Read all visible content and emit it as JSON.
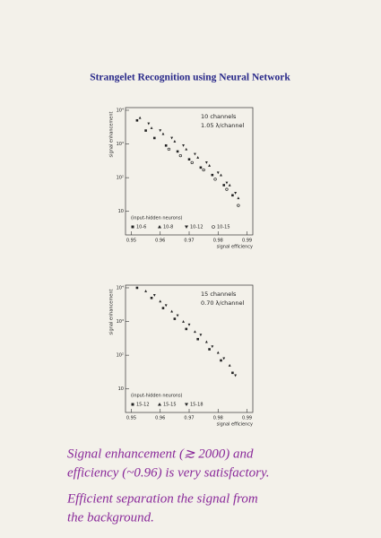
{
  "title": "Strangelet Recognition using Neural Network",
  "chart_data": [
    {
      "type": "scatter",
      "log_y": true,
      "xlabel": "signal efficiency",
      "ylabel": "signal enhancement",
      "annotations": [
        "10 channels",
        "1.05 λ/channel"
      ],
      "legend_title": "(input-hidden neurons)",
      "xlim": [
        0.948,
        0.992
      ],
      "xticks": [
        0.95,
        0.96,
        0.97,
        0.98,
        0.99
      ],
      "ylim": [
        2,
        12000
      ],
      "yticks": [
        10,
        {
          "value": 100,
          "label": "10²"
        },
        {
          "value": 1000,
          "label": "10³"
        },
        {
          "value": 10000,
          "label": "10⁴"
        }
      ],
      "series": [
        {
          "name": "10-6",
          "marker": "square",
          "color": "#222222",
          "x": [
            0.952,
            0.955,
            0.958,
            0.962,
            0.966,
            0.97,
            0.974,
            0.978,
            0.982,
            0.985
          ],
          "values": [
            5000,
            2500,
            1500,
            900,
            600,
            350,
            200,
            120,
            60,
            30
          ]
        },
        {
          "name": "10-8",
          "marker": "triangle-up",
          "color": "#222222",
          "x": [
            0.953,
            0.957,
            0.961,
            0.965,
            0.969,
            0.973,
            0.977,
            0.981,
            0.984,
            0.987
          ],
          "values": [
            6000,
            3000,
            2000,
            1200,
            700,
            400,
            230,
            120,
            60,
            25
          ]
        },
        {
          "name": "10-12",
          "marker": "triangle-down",
          "color": "#222222",
          "x": [
            0.956,
            0.96,
            0.964,
            0.968,
            0.972,
            0.976,
            0.98,
            0.983,
            0.986
          ],
          "values": [
            4000,
            2500,
            1500,
            900,
            500,
            280,
            140,
            70,
            35
          ]
        },
        {
          "name": "10-15",
          "marker": "circle",
          "color": "#222222",
          "x": [
            0.963,
            0.967,
            0.971,
            0.975,
            0.979,
            0.983,
            0.987
          ],
          "values": [
            700,
            450,
            280,
            170,
            90,
            45,
            15
          ]
        }
      ]
    },
    {
      "type": "scatter",
      "log_y": true,
      "xlabel": "signal efficiency",
      "ylabel": "signal enhancement",
      "annotations": [
        "15 channels",
        "0.70 λ/channel"
      ],
      "legend_title": "(input-hidden neurons)",
      "xlim": [
        0.948,
        0.992
      ],
      "xticks": [
        0.95,
        0.96,
        0.97,
        0.98,
        0.99
      ],
      "ylim": [
        2,
        12000
      ],
      "yticks": [
        10,
        {
          "value": 100,
          "label": "10²"
        },
        {
          "value": 1000,
          "label": "10³"
        },
        {
          "value": 10000,
          "label": "10⁴"
        }
      ],
      "series": [
        {
          "name": "15-12",
          "marker": "square",
          "color": "#222222",
          "x": [
            0.952,
            0.957,
            0.961,
            0.965,
            0.969,
            0.973,
            0.977,
            0.981,
            0.985
          ],
          "values": [
            10000,
            5000,
            2500,
            1200,
            600,
            300,
            150,
            70,
            30
          ]
        },
        {
          "name": "15-15",
          "marker": "triangle-up",
          "color": "#222222",
          "x": [
            0.955,
            0.96,
            0.964,
            0.968,
            0.972,
            0.976,
            0.98,
            0.984
          ],
          "values": [
            8000,
            4000,
            2000,
            1000,
            500,
            250,
            120,
            50
          ]
        },
        {
          "name": "15-18",
          "marker": "triangle-down",
          "color": "#222222",
          "x": [
            0.958,
            0.962,
            0.966,
            0.97,
            0.974,
            0.978,
            0.982,
            0.986
          ],
          "values": [
            6000,
            3000,
            1500,
            800,
            400,
            180,
            80,
            25
          ]
        }
      ]
    }
  ],
  "notes": [
    "Signal enhancement (≳ 2000) and",
    "efficiency (~0.96) is very satisfactory.",
    "Efficient separation the signal from",
    "the background."
  ]
}
